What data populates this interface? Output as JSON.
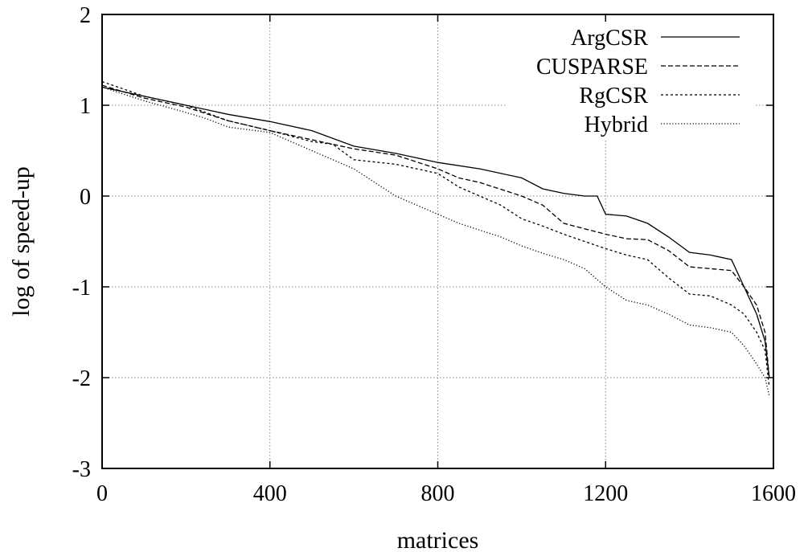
{
  "chart_data": {
    "type": "line",
    "title": "",
    "xlabel": "matrices",
    "ylabel": "log of speed-up",
    "xlim": [
      0,
      1600
    ],
    "ylim": [
      -3,
      2
    ],
    "xticks": [
      0,
      400,
      800,
      1200,
      1600
    ],
    "yticks": [
      2,
      1,
      0,
      -1,
      -2,
      -3
    ],
    "xtick_labels": [
      "0",
      "400",
      "800",
      "1200",
      "1600"
    ],
    "ytick_labels": [
      "2",
      "1",
      "0",
      "-1",
      "-2",
      "-3"
    ],
    "grid": true,
    "legend": "top-right",
    "series": [
      {
        "name": "ArgCSR",
        "style": "solid",
        "x": [
          0,
          100,
          200,
          300,
          400,
          500,
          600,
          700,
          750,
          800,
          900,
          1000,
          1050,
          1100,
          1150,
          1180,
          1200,
          1250,
          1300,
          1350,
          1400,
          1450,
          1500,
          1530,
          1560,
          1580,
          1590
        ],
        "y": [
          1.2,
          1.1,
          1.0,
          0.9,
          0.82,
          0.72,
          0.55,
          0.47,
          0.42,
          0.37,
          0.3,
          0.2,
          0.08,
          0.03,
          0.0,
          0.0,
          -0.2,
          -0.22,
          -0.3,
          -0.45,
          -0.62,
          -0.65,
          -0.7,
          -1.0,
          -1.3,
          -1.6,
          -2.0
        ]
      },
      {
        "name": "CUSPARSE",
        "style": "dashed",
        "x": [
          0,
          100,
          200,
          300,
          400,
          500,
          600,
          700,
          800,
          850,
          900,
          1000,
          1050,
          1100,
          1150,
          1200,
          1250,
          1300,
          1350,
          1400,
          1450,
          1500,
          1530,
          1560,
          1580,
          1590
        ],
        "y": [
          1.22,
          1.08,
          0.98,
          0.83,
          0.72,
          0.62,
          0.52,
          0.45,
          0.3,
          0.2,
          0.15,
          0.0,
          -0.1,
          -0.3,
          -0.36,
          -0.42,
          -0.47,
          -0.48,
          -0.6,
          -0.78,
          -0.8,
          -0.82,
          -1.0,
          -1.2,
          -1.5,
          -2.0
        ]
      },
      {
        "name": "RgCSR",
        "style": "short-dashed",
        "x": [
          0,
          100,
          200,
          300,
          400,
          500,
          550,
          600,
          700,
          800,
          850,
          900,
          950,
          1000,
          1050,
          1100,
          1200,
          1250,
          1300,
          1350,
          1400,
          1450,
          1500,
          1530,
          1560,
          1580,
          1590
        ],
        "y": [
          1.26,
          1.1,
          1.0,
          0.83,
          0.72,
          0.6,
          0.57,
          0.4,
          0.35,
          0.25,
          0.1,
          0.0,
          -0.1,
          -0.25,
          -0.33,
          -0.42,
          -0.58,
          -0.65,
          -0.7,
          -0.9,
          -1.08,
          -1.1,
          -1.2,
          -1.3,
          -1.5,
          -1.7,
          -2.1
        ]
      },
      {
        "name": "Hybrid",
        "style": "dotted",
        "x": [
          0,
          100,
          200,
          250,
          300,
          400,
          500,
          600,
          650,
          700,
          750,
          800,
          850,
          950,
          1000,
          1050,
          1100,
          1150,
          1200,
          1250,
          1300,
          1350,
          1400,
          1450,
          1500,
          1530,
          1560,
          1580,
          1590
        ],
        "y": [
          1.2,
          1.05,
          0.92,
          0.85,
          0.76,
          0.7,
          0.5,
          0.3,
          0.15,
          0.0,
          -0.1,
          -0.2,
          -0.3,
          -0.45,
          -0.55,
          -0.63,
          -0.7,
          -0.8,
          -1.0,
          -1.15,
          -1.2,
          -1.3,
          -1.42,
          -1.45,
          -1.5,
          -1.65,
          -1.85,
          -2.0,
          -2.2
        ]
      }
    ]
  }
}
